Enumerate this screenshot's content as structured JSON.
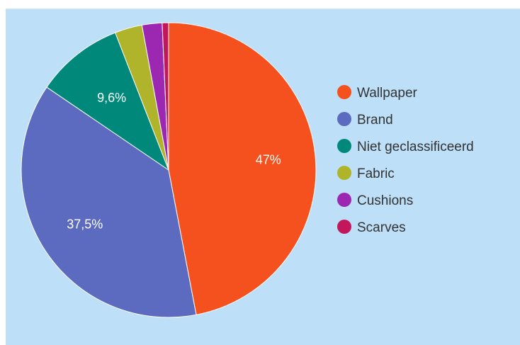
{
  "chart_data": {
    "type": "pie",
    "categories": [
      "Wallpaper",
      "Brand",
      "Niet geclassificeerd",
      "Fabric",
      "Cushions",
      "Scarves"
    ],
    "values": [
      47,
      37.5,
      9.6,
      3.0,
      2.2,
      0.7
    ],
    "data_labels": [
      "47%",
      "37,5%",
      "9,6%",
      "",
      "",
      ""
    ],
    "colors": [
      "#f4511e",
      "#5c6bc0",
      "#00897b",
      "#afb42b",
      "#9c27b0",
      "#c2185b"
    ],
    "legend_position": "right",
    "start_angle_deg": 0,
    "direction": "clockwise"
  }
}
